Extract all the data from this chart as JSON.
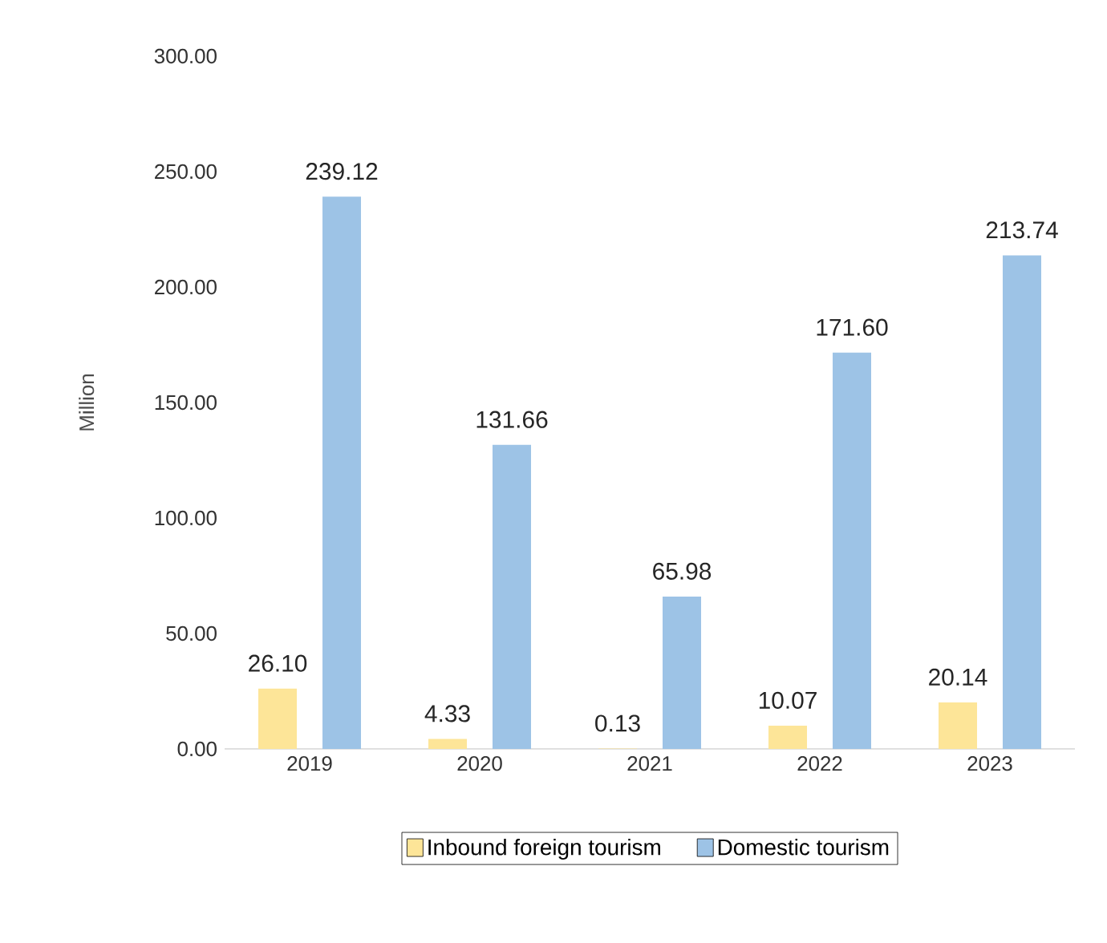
{
  "chart_data": {
    "type": "bar",
    "ylabel": "Million",
    "categories": [
      "2019",
      "2020",
      "2021",
      "2022",
      "2023"
    ],
    "series": [
      {
        "name": "Inbound foreign tourism",
        "color": "#fde598",
        "values": [
          26.1,
          4.33,
          0.13,
          10.07,
          20.14
        ],
        "value_labels": [
          "26.10",
          "4.33",
          "0.13",
          "10.07",
          "20.14"
        ]
      },
      {
        "name": "Domestic tourism",
        "color": "#9dc3e6",
        "values": [
          239.12,
          131.66,
          65.98,
          171.6,
          213.74
        ],
        "value_labels": [
          "239.12",
          "131.66",
          "65.98",
          "171.60",
          "213.74"
        ]
      }
    ],
    "ylim": [
      0,
      300
    ],
    "yticks": [
      {
        "value": 0,
        "label": "0.00"
      },
      {
        "value": 50,
        "label": "50.00"
      },
      {
        "value": 100,
        "label": "100.00"
      },
      {
        "value": 150,
        "label": "150.00"
      },
      {
        "value": 200,
        "label": "200.00"
      },
      {
        "value": 250,
        "label": "250.00"
      },
      {
        "value": 300,
        "label": "300.00"
      }
    ],
    "grid": false,
    "legend": "bottom"
  }
}
